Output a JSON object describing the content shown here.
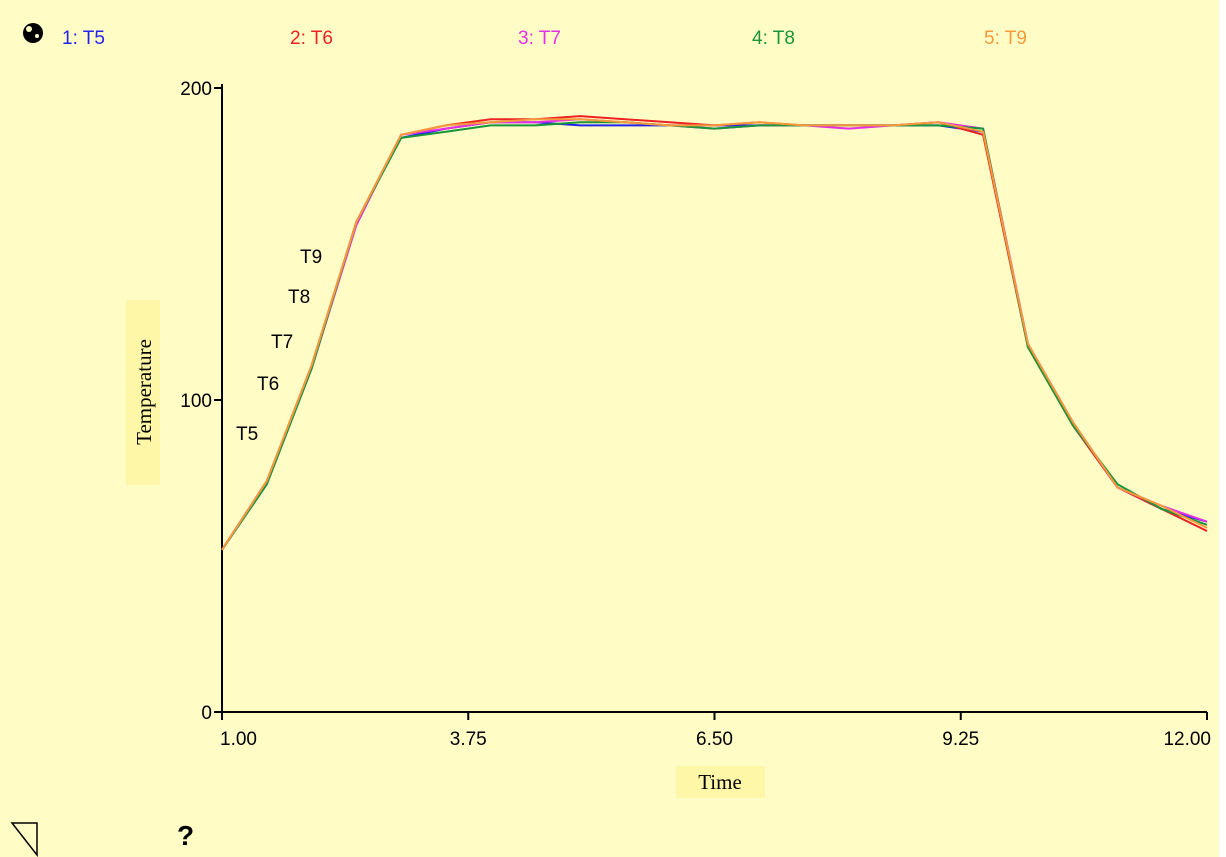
{
  "legend": [
    {
      "text": "1: T5",
      "color": "#2222ee"
    },
    {
      "text": "2: T6",
      "color": "#ee2222"
    },
    {
      "text": "3: T7",
      "color": "#e62ee6"
    },
    {
      "text": "4: T8",
      "color": "#18963a"
    },
    {
      "text": "5: T9",
      "color": "#f59a3c"
    }
  ],
  "controls": {
    "graph_icon": "graph-pad-icon",
    "corner_icon": "triangle-corner-icon",
    "help_label": "?"
  },
  "chart_data": {
    "type": "line",
    "title": "",
    "xlabel": "Time",
    "ylabel": "Temperature",
    "xlim": [
      1.0,
      12.0
    ],
    "ylim": [
      0,
      200
    ],
    "x_ticks": [
      "1.00",
      "3.75",
      "6.50",
      "9.25",
      "12.00"
    ],
    "y_ticks": [
      "0",
      "100",
      "200"
    ],
    "grid": false,
    "legend_placement": "top",
    "x": [
      1.0,
      1.5,
      2.0,
      2.5,
      3.0,
      3.5,
      4.0,
      4.5,
      5.0,
      5.5,
      6.0,
      6.5,
      7.0,
      7.5,
      8.0,
      8.5,
      9.0,
      9.5,
      10.0,
      10.5,
      11.0,
      11.5,
      12.0
    ],
    "series": [
      {
        "name": "T5",
        "color": "#2222ee",
        "values": [
          52,
          73,
          110,
          157,
          184,
          187,
          189,
          189,
          188,
          188,
          188,
          188,
          188,
          188,
          188,
          188,
          188,
          186,
          118,
          92,
          72,
          65,
          61
        ]
      },
      {
        "name": "T6",
        "color": "#ee2222",
        "values": [
          52,
          74,
          111,
          157,
          185,
          188,
          190,
          190,
          191,
          190,
          189,
          188,
          189,
          188,
          188,
          188,
          189,
          185,
          117,
          92,
          72,
          65,
          58
        ]
      },
      {
        "name": "T7",
        "color": "#e62ee6",
        "values": [
          52,
          74,
          110,
          156,
          185,
          187,
          189,
          189,
          190,
          189,
          188,
          187,
          188,
          188,
          187,
          188,
          189,
          187,
          118,
          93,
          72,
          66,
          61
        ]
      },
      {
        "name": "T8",
        "color": "#18963a",
        "values": [
          52,
          73,
          110,
          157,
          184,
          186,
          188,
          188,
          189,
          189,
          188,
          187,
          188,
          188,
          188,
          188,
          188,
          187,
          117,
          92,
          73,
          65,
          60
        ]
      },
      {
        "name": "T9",
        "color": "#f59a3c",
        "values": [
          52,
          74,
          111,
          157,
          185,
          188,
          189,
          190,
          190,
          189,
          188,
          188,
          189,
          188,
          188,
          188,
          189,
          186,
          118,
          93,
          72,
          66,
          59
        ]
      }
    ],
    "annotations": [
      "T5",
      "T6",
      "T7",
      "T8",
      "T9"
    ]
  }
}
